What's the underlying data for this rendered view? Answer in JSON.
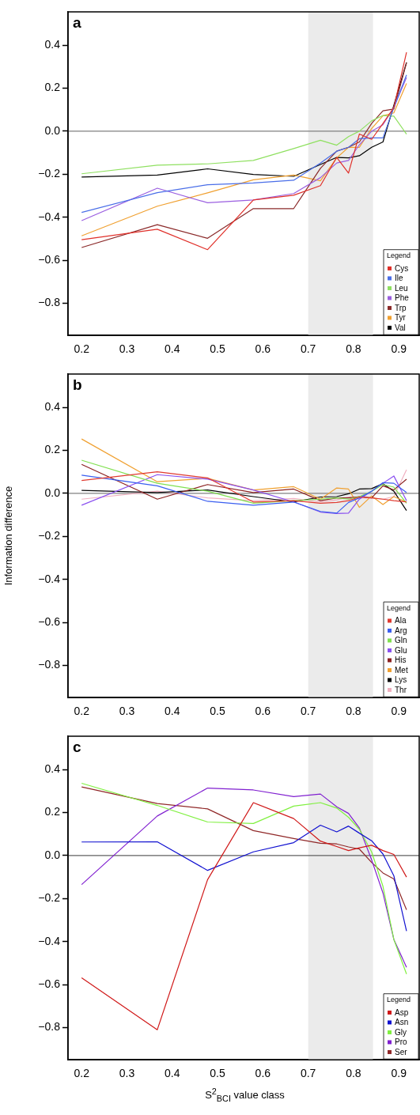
{
  "chart_data": [
    {
      "type": "line",
      "title": "a",
      "legend": "bottom right",
      "legend_title": "Legend",
      "marker": "none",
      "xlim": [
        0.17,
        0.945
      ],
      "ylim": [
        -0.95,
        0.555
      ],
      "xticks": [
        0.2,
        0.3,
        0.4,
        0.5,
        0.6,
        0.7,
        0.8,
        0.9
      ],
      "yticks": [
        {
          "value": -0.8,
          "label": "−0.8"
        },
        {
          "value": -0.6,
          "label": "−0.6"
        },
        {
          "value": -0.4,
          "label": "−0.4"
        },
        {
          "value": -0.2,
          "label": "−0.2"
        },
        {
          "value": 0,
          "label": "0.0"
        },
        {
          "value": 0.2,
          "label": "0.2"
        },
        {
          "value": 0.4,
          "label": "0.4"
        }
      ],
      "bands": [
        {
          "axis": "x",
          "from": 0.7,
          "to": 0.843,
          "color": "#ebebeb"
        }
      ],
      "ref_lines": [
        {
          "axis": "y",
          "value": 0,
          "color": "#808080"
        }
      ],
      "x": [
        0.2,
        0.367,
        0.478,
        0.579,
        0.668,
        0.727,
        0.763,
        0.789,
        0.813,
        0.84,
        0.865,
        0.889,
        0.917
      ],
      "series": [
        {
          "name": "Cys",
          "color": "#e0302a",
          "values": [
            -0.505,
            -0.456,
            -0.551,
            -0.32,
            -0.298,
            -0.253,
            -0.122,
            -0.195,
            -0.013,
            -0.038,
            0.036,
            0.11,
            0.367
          ]
        },
        {
          "name": "Ile",
          "color": "#4a6ee8",
          "values": [
            -0.378,
            -0.286,
            -0.249,
            -0.241,
            -0.228,
            -0.148,
            -0.093,
            -0.075,
            -0.035,
            -0.031,
            -0.031,
            0.11,
            0.262
          ]
        },
        {
          "name": "Leu",
          "color": "#8fe060",
          "values": [
            -0.198,
            -0.158,
            -0.152,
            -0.136,
            -0.081,
            -0.042,
            -0.065,
            -0.025,
            0.0,
            0.048,
            0.073,
            0.07,
            -0.014
          ]
        },
        {
          "name": "Phe",
          "color": "#9b5fe0",
          "values": [
            -0.416,
            -0.265,
            -0.333,
            -0.32,
            -0.29,
            -0.216,
            -0.148,
            -0.136,
            -0.063,
            0.0,
            0.03,
            0.11,
            0.25
          ]
        },
        {
          "name": "Trp",
          "color": "#8b2a2a",
          "values": [
            -0.541,
            -0.435,
            -0.498,
            -0.36,
            -0.36,
            -0.173,
            -0.093,
            -0.075,
            -0.05,
            0.036,
            0.095,
            0.103,
            0.318
          ]
        },
        {
          "name": "Tyr",
          "color": "#f0a030",
          "values": [
            -0.487,
            -0.349,
            -0.287,
            -0.226,
            -0.204,
            -0.231,
            -0.124,
            -0.075,
            -0.075,
            0.012,
            0.072,
            0.085,
            0.222
          ]
        },
        {
          "name": "Val",
          "color": "#000000",
          "values": [
            -0.213,
            -0.204,
            -0.175,
            -0.201,
            -0.21,
            -0.155,
            -0.122,
            -0.124,
            -0.114,
            -0.075,
            -0.05,
            0.12,
            0.32
          ]
        }
      ]
    },
    {
      "type": "line",
      "title": "b",
      "ylabel": "Information difference",
      "legend": "bottom right",
      "legend_title": "Legend",
      "marker": "none",
      "xlim": [
        0.17,
        0.945
      ],
      "ylim": [
        -0.95,
        0.555
      ],
      "xticks": [
        0.2,
        0.3,
        0.4,
        0.5,
        0.6,
        0.7,
        0.8,
        0.9
      ],
      "yticks": [
        {
          "value": -0.8,
          "label": "−0.8"
        },
        {
          "value": -0.6,
          "label": "−0.6"
        },
        {
          "value": -0.4,
          "label": "−0.4"
        },
        {
          "value": -0.2,
          "label": "−0.2"
        },
        {
          "value": 0,
          "label": "0.0"
        },
        {
          "value": 0.2,
          "label": "0.2"
        },
        {
          "value": 0.4,
          "label": "0.4"
        }
      ],
      "bands": [
        {
          "axis": "x",
          "from": 0.7,
          "to": 0.843,
          "color": "#ebebeb"
        }
      ],
      "ref_lines": [
        {
          "axis": "y",
          "value": 0,
          "color": "#808080"
        }
      ],
      "x": [
        0.2,
        0.367,
        0.478,
        0.579,
        0.668,
        0.727,
        0.763,
        0.789,
        0.813,
        0.84,
        0.865,
        0.889,
        0.917
      ],
      "series": [
        {
          "name": "Ala",
          "color": "#e03a30",
          "values": [
            0.06,
            0.1,
            0.072,
            -0.04,
            -0.034,
            -0.046,
            -0.042,
            -0.034,
            -0.017,
            -0.021,
            -0.027,
            -0.034,
            -0.04
          ]
        },
        {
          "name": "Arg",
          "color": "#3a5ef0",
          "values": [
            0.085,
            0.035,
            -0.037,
            -0.055,
            -0.04,
            -0.084,
            -0.092,
            -0.042,
            -0.021,
            0.01,
            0.05,
            0.047,
            0.004
          ]
        },
        {
          "name": "Gln",
          "color": "#80e050",
          "values": [
            0.154,
            0.047,
            0.01,
            -0.046,
            -0.034,
            -0.027,
            -0.021,
            -0.027,
            -0.015,
            0.01,
            0.041,
            0.029,
            -0.046
          ]
        },
        {
          "name": "Glu",
          "color": "#8a50f0",
          "values": [
            -0.055,
            0.087,
            0.066,
            0.016,
            -0.04,
            -0.087,
            -0.094,
            -0.092,
            -0.027,
            0.01,
            0.047,
            0.081,
            -0.034
          ]
        },
        {
          "name": "His",
          "color": "#8b2020",
          "values": [
            0.135,
            -0.027,
            0.041,
            0.004,
            0.02,
            -0.034,
            -0.021,
            -0.021,
            -0.015,
            -0.021,
            0.035,
            0.016,
            0.066
          ]
        },
        {
          "name": "Met",
          "color": "#f0a030",
          "values": [
            0.253,
            0.054,
            0.07,
            0.016,
            0.031,
            -0.027,
            0.025,
            0.02,
            -0.065,
            -0.012,
            -0.052,
            -0.015,
            -0.04
          ]
        },
        {
          "name": "Lys",
          "color": "#000000",
          "values": [
            0.014,
            0.004,
            0.016,
            -0.015,
            -0.04,
            -0.017,
            -0.015,
            -0.002,
            0.02,
            0.022,
            0.045,
            0.01,
            -0.08
          ]
        },
        {
          "name": "Thr",
          "color": "#f0b0c0",
          "values": [
            -0.027,
            0.01,
            -0.021,
            -0.034,
            -0.024,
            -0.04,
            -0.03,
            -0.017,
            -0.021,
            -0.021,
            -0.027,
            -0.015,
            0.11
          ]
        }
      ]
    },
    {
      "type": "line",
      "title": "c",
      "xlabel": "S$^{2}$$_{BCI}$ value class",
      "legend": "bottom right",
      "legend_title": "Legend",
      "marker": "none",
      "xlim": [
        0.17,
        0.945
      ],
      "ylim": [
        -0.95,
        0.555
      ],
      "xticks": [
        0.2,
        0.3,
        0.4,
        0.5,
        0.6,
        0.7,
        0.8,
        0.9
      ],
      "yticks": [
        {
          "value": -0.8,
          "label": "−0.8"
        },
        {
          "value": -0.6,
          "label": "−0.6"
        },
        {
          "value": -0.4,
          "label": "−0.4"
        },
        {
          "value": -0.2,
          "label": "−0.2"
        },
        {
          "value": 0,
          "label": "0.0"
        },
        {
          "value": 0.2,
          "label": "0.2"
        },
        {
          "value": 0.4,
          "label": "0.4"
        }
      ],
      "bands": [
        {
          "axis": "x",
          "from": 0.7,
          "to": 0.843,
          "color": "#ebebeb"
        }
      ],
      "ref_lines": [
        {
          "axis": "y",
          "value": 0,
          "color": "#606060"
        }
      ],
      "x": [
        0.2,
        0.367,
        0.478,
        0.579,
        0.668,
        0.727,
        0.763,
        0.789,
        0.813,
        0.84,
        0.865,
        0.889,
        0.917
      ],
      "series": [
        {
          "name": "Asp",
          "color": "#d01818",
          "values": [
            -0.569,
            -0.81,
            -0.112,
            0.246,
            0.172,
            0.067,
            0.042,
            0.023,
            0.036,
            0.048,
            0.023,
            0.005,
            -0.1
          ]
        },
        {
          "name": "Asn",
          "color": "#1010d0",
          "values": [
            0.063,
            0.064,
            -0.069,
            0.017,
            0.06,
            0.141,
            0.11,
            0.137,
            0.104,
            0.069,
            0.007,
            -0.094,
            -0.351
          ]
        },
        {
          "name": "Gly",
          "color": "#80f040",
          "values": [
            0.336,
            0.233,
            0.156,
            0.149,
            0.23,
            0.246,
            0.221,
            0.178,
            0.122,
            0.017,
            -0.143,
            -0.39,
            -0.551
          ]
        },
        {
          "name": "Pro",
          "color": "#8020d0",
          "values": [
            -0.135,
            0.184,
            0.314,
            0.305,
            0.274,
            0.286,
            0.227,
            0.196,
            0.128,
            -0.02,
            -0.174,
            -0.39,
            -0.52
          ]
        },
        {
          "name": "Ser",
          "color": "#902828",
          "values": [
            0.319,
            0.242,
            0.217,
            0.116,
            0.079,
            0.057,
            0.054,
            0.04,
            0.03,
            -0.032,
            -0.081,
            -0.109,
            -0.252
          ]
        }
      ]
    }
  ]
}
